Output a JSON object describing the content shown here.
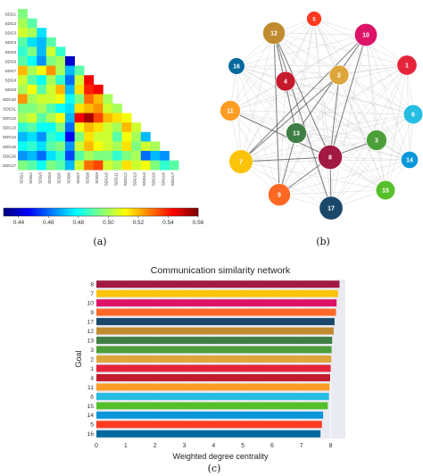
{
  "figure": {
    "panel_labels": [
      "(a)",
      "(b)",
      "(c)"
    ]
  },
  "chart_data": [
    {
      "type": "heatmap",
      "panel": "a",
      "title": "",
      "labels": [
        "SDG1",
        "SDG2",
        "SDG3",
        "SDG4",
        "SDG5",
        "SDG6",
        "SDG7",
        "SDG8",
        "SDG9",
        "SDG10",
        "SDG11",
        "SDG12",
        "SDG13",
        "SDG14",
        "SDG15",
        "SDG16",
        "SDG17"
      ],
      "colorbar": {
        "min": 0.43,
        "max": 0.56,
        "ticks": [
          "0.44",
          "0.46",
          "0.48",
          "0.50",
          "0.52",
          "0.54",
          "0.56"
        ],
        "tick_values": [
          0.44,
          0.46,
          0.48,
          0.5,
          0.52,
          0.54,
          0.56
        ]
      },
      "matrix": [
        [
          0.495
        ],
        [
          0.5,
          0.49
        ],
        [
          0.505,
          0.5,
          0.475
        ],
        [
          0.49,
          0.475,
          0.47,
          0.49
        ],
        [
          0.485,
          0.495,
          0.47,
          0.505,
          0.485
        ],
        [
          0.49,
          0.48,
          0.465,
          0.495,
          0.5,
          0.44
        ],
        [
          0.52,
          0.5,
          0.51,
          0.525,
          0.5,
          0.47,
          0.49
        ],
        [
          0.505,
          0.49,
          0.48,
          0.5,
          0.485,
          0.46,
          0.505,
          0.545
        ],
        [
          0.5,
          0.51,
          0.49,
          0.505,
          0.52,
          0.47,
          0.515,
          0.54,
          0.545
        ],
        [
          0.525,
          0.5,
          0.505,
          0.505,
          0.51,
          0.48,
          0.495,
          0.53,
          0.52,
          0.5
        ],
        [
          0.495,
          0.495,
          0.5,
          0.49,
          0.48,
          0.475,
          0.515,
          0.52,
          0.525,
          0.505,
          0.5
        ],
        [
          0.5,
          0.505,
          0.49,
          0.5,
          0.51,
          0.47,
          0.545,
          0.555,
          0.535,
          0.52,
          0.515,
          0.51
        ],
        [
          0.485,
          0.49,
          0.48,
          0.48,
          0.495,
          0.46,
          0.51,
          0.52,
          0.515,
          0.505,
          0.5,
          0.52,
          0.505
        ],
        [
          0.47,
          0.475,
          0.465,
          0.485,
          0.48,
          0.445,
          0.495,
          0.515,
          0.505,
          0.505,
          0.49,
          0.51,
          0.5,
          0.47
        ],
        [
          0.48,
          0.485,
          0.475,
          0.49,
          0.495,
          0.465,
          0.505,
          0.52,
          0.51,
          0.505,
          0.5,
          0.515,
          0.495,
          0.505,
          0.5
        ],
        [
          0.465,
          0.47,
          0.46,
          0.475,
          0.485,
          0.455,
          0.49,
          0.5,
          0.495,
          0.495,
          0.485,
          0.495,
          0.5,
          0.46,
          0.47,
          0.465
        ],
        [
          0.495,
          0.49,
          0.48,
          0.495,
          0.49,
          0.47,
          0.505,
          0.53,
          0.535,
          0.505,
          0.5,
          0.515,
          0.505,
          0.51,
          0.495,
          0.485,
          0.49
        ]
      ]
    },
    {
      "type": "network",
      "panel": "b",
      "title": "",
      "nodes": [
        {
          "label": "1",
          "color": "#e5243b",
          "size": 0.72
        },
        {
          "label": "2",
          "color": "#dda63a",
          "size": 0.7
        },
        {
          "label": "3",
          "color": "#4c9f38",
          "size": 0.76
        },
        {
          "label": "4",
          "color": "#c5192d",
          "size": 0.7
        },
        {
          "label": "5",
          "color": "#ff3a21",
          "size": 0.4
        },
        {
          "label": "6",
          "color": "#26bde2",
          "size": 0.68
        },
        {
          "label": "7",
          "color": "#fcc30b",
          "size": 0.98
        },
        {
          "label": "8",
          "color": "#a21942",
          "size": 1.0
        },
        {
          "label": "9",
          "color": "#fd6925",
          "size": 0.88
        },
        {
          "label": "10",
          "color": "#dd1367",
          "size": 0.9
        },
        {
          "label": "11",
          "color": "#fd9d24",
          "size": 0.75
        },
        {
          "label": "12",
          "color": "#bf8b2e",
          "size": 0.88
        },
        {
          "label": "13",
          "color": "#3f7e44",
          "size": 0.76
        },
        {
          "label": "14",
          "color": "#0a97d9",
          "size": 0.54
        },
        {
          "label": "15",
          "color": "#56c02b",
          "size": 0.68
        },
        {
          "label": "16",
          "color": "#00689d",
          "size": 0.5
        },
        {
          "label": "17",
          "color": "#19486a",
          "size": 0.96
        }
      ],
      "strong_edges": [
        [
          "8",
          "12"
        ],
        [
          "8",
          "10"
        ],
        [
          "8",
          "17"
        ],
        [
          "8",
          "7"
        ],
        [
          "12",
          "9"
        ],
        [
          "8",
          "9"
        ],
        [
          "10",
          "7"
        ],
        [
          "12",
          "17"
        ],
        [
          "2",
          "8"
        ],
        [
          "13",
          "9"
        ],
        [
          "8",
          "3"
        ],
        [
          "11",
          "8"
        ],
        [
          "12",
          "13"
        ],
        [
          "10",
          "13"
        ],
        [
          "2",
          "7"
        ]
      ]
    },
    {
      "type": "bar",
      "panel": "c",
      "orientation": "horizontal",
      "title": "Communication similarity network",
      "xlabel": "Weighted degree centrality",
      "ylabel": "Goal",
      "xlim": [
        0,
        8.5
      ],
      "xticks": [
        0,
        1,
        2,
        3,
        4,
        5,
        6,
        7,
        8
      ],
      "categories": [
        "8",
        "7",
        "10",
        "9",
        "17",
        "12",
        "13",
        "3",
        "2",
        "1",
        "4",
        "11",
        "6",
        "15",
        "14",
        "5",
        "16"
      ],
      "values": [
        8.3,
        8.25,
        8.2,
        8.18,
        8.13,
        8.1,
        8.05,
        8.03,
        8.02,
        8.0,
        7.98,
        7.96,
        7.94,
        7.9,
        7.74,
        7.7,
        7.65
      ],
      "colors": [
        "#a21942",
        "#fcc30b",
        "#dd1367",
        "#fd6925",
        "#19486a",
        "#bf8b2e",
        "#3f7e44",
        "#4c9f38",
        "#dda63a",
        "#e5243b",
        "#c5192d",
        "#fd9d24",
        "#26bde2",
        "#56c02b",
        "#0a97d9",
        "#ff3a21",
        "#00689d"
      ],
      "grid": true,
      "background": "#e9eaf2"
    }
  ]
}
